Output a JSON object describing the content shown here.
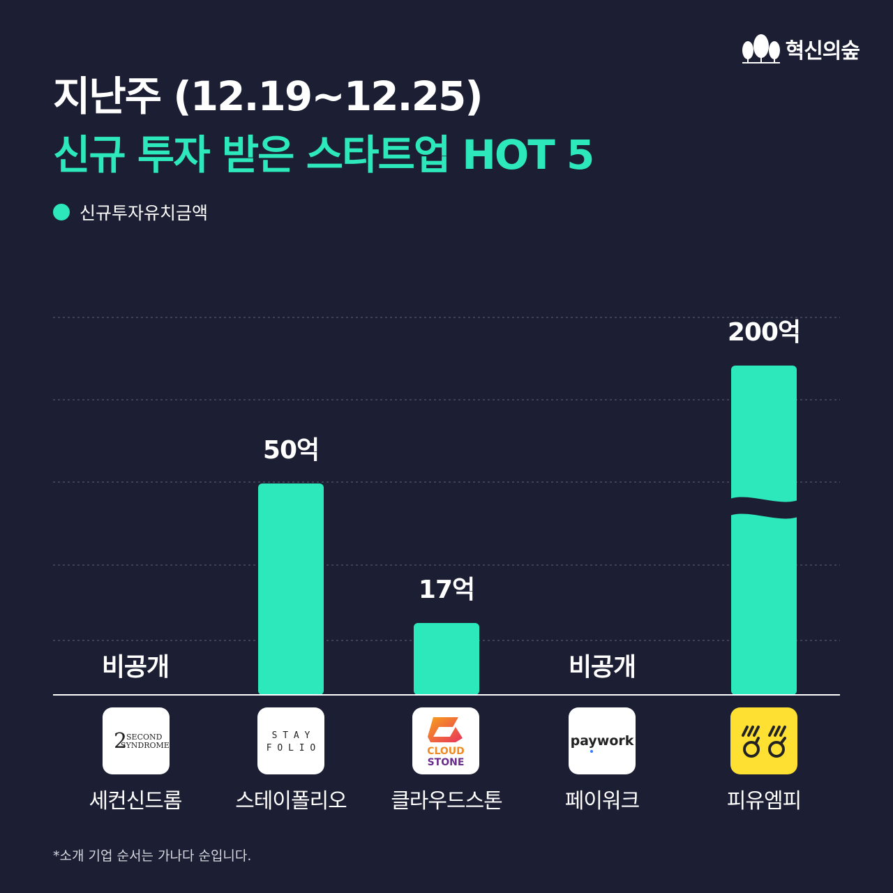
{
  "brand": {
    "name": "혁신의숲"
  },
  "title": {
    "line1": "지난주 (12.19~12.25)",
    "line2": "신규 투자 받은 스타트업 HOT 5"
  },
  "footnote": "*소개 기업 순서는 가나다 순입니다.",
  "colors": {
    "background": "#1c1f33",
    "accent": "#2de8bb",
    "grid": "#4a4e66"
  },
  "chart_data": {
    "type": "bar",
    "legend": [
      "신규투자유치금액"
    ],
    "legend_position": "top-left",
    "grid": true,
    "axis_break_on_max": true,
    "categories": [
      "세컨신드롬",
      "스테이폴리오",
      "클라우드스톤",
      "페이워크",
      "피유엠피"
    ],
    "series": [
      {
        "name": "신규투자유치금액",
        "values": [
          null,
          50,
          17,
          null,
          200
        ]
      }
    ],
    "data_labels": [
      "비공개",
      "50억",
      "17억",
      "비공개",
      "200억"
    ],
    "ylim": [
      0,
      200
    ]
  },
  "logos": [
    {
      "company": "세컨신드롬",
      "text_line1": "SECOND",
      "text_line2": "SYNDROME",
      "bg": "#ffffff"
    },
    {
      "company": "스테이폴리오",
      "text_line1": "S T A Y",
      "text_line2": "F O L I O",
      "bg": "#ffffff"
    },
    {
      "company": "클라우드스톤",
      "text_line1": "CLOUD",
      "text_line2": "STONE",
      "bg": "#ffffff"
    },
    {
      "company": "페이워크",
      "text_line1": "paywork",
      "bg": "#ffffff"
    },
    {
      "company": "피유엠피",
      "bg": "#fde032"
    }
  ]
}
